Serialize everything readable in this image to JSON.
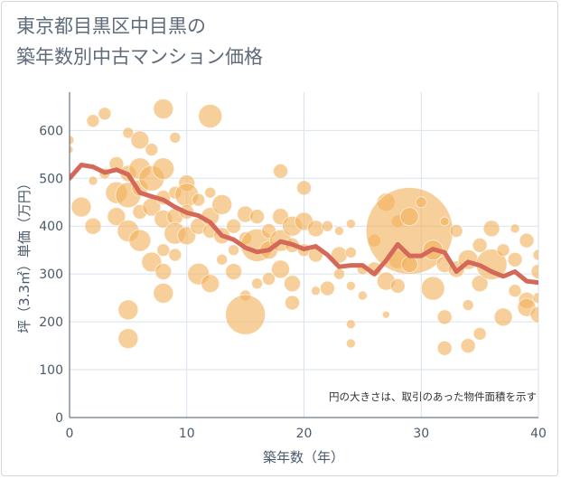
{
  "title_lines": [
    "東京都目黒区中目黒の",
    "築年数別中古マンション価格"
  ],
  "note": "円の大きさは、取引のあった物件面積を示す",
  "chart_data": {
    "type": "scatter",
    "xlabel": "築年数（年）",
    "ylabel": "坪（3.3㎡）単価（万円）",
    "xlim": [
      0,
      40
    ],
    "ylim": [
      0,
      680
    ],
    "xticks": [
      "0",
      "10",
      "20",
      "30",
      "40"
    ],
    "yticks": [
      "0",
      "100",
      "200",
      "300",
      "400",
      "500",
      "600"
    ],
    "grid": true,
    "colors": {
      "bubble": "#f2b25c",
      "line": "#d4695a",
      "grid": "#d9e2ee",
      "axis": "#4b5a6a"
    },
    "bubbles": [
      {
        "x": 0,
        "y": 580,
        "s": 5
      },
      {
        "x": 0,
        "y": 560,
        "s": 4
      },
      {
        "x": 0,
        "y": 505,
        "s": 4
      },
      {
        "x": 1,
        "y": 440,
        "s": 11
      },
      {
        "x": 2,
        "y": 620,
        "s": 7
      },
      {
        "x": 2,
        "y": 495,
        "s": 5
      },
      {
        "x": 2,
        "y": 400,
        "s": 9
      },
      {
        "x": 3,
        "y": 635,
        "s": 7
      },
      {
        "x": 3,
        "y": 510,
        "s": 6
      },
      {
        "x": 4,
        "y": 530,
        "s": 8
      },
      {
        "x": 4,
        "y": 470,
        "s": 12
      },
      {
        "x": 4,
        "y": 420,
        "s": 10
      },
      {
        "x": 5,
        "y": 595,
        "s": 6
      },
      {
        "x": 5,
        "y": 510,
        "s": 9
      },
      {
        "x": 5,
        "y": 465,
        "s": 14
      },
      {
        "x": 5,
        "y": 390,
        "s": 12
      },
      {
        "x": 5,
        "y": 225,
        "s": 11
      },
      {
        "x": 5,
        "y": 165,
        "s": 11
      },
      {
        "x": 6,
        "y": 580,
        "s": 10
      },
      {
        "x": 6,
        "y": 520,
        "s": 12
      },
      {
        "x": 6,
        "y": 480,
        "s": 9
      },
      {
        "x": 6,
        "y": 430,
        "s": 8
      },
      {
        "x": 6,
        "y": 370,
        "s": 12
      },
      {
        "x": 7,
        "y": 560,
        "s": 7
      },
      {
        "x": 7,
        "y": 500,
        "s": 14
      },
      {
        "x": 7,
        "y": 440,
        "s": 10
      },
      {
        "x": 7,
        "y": 325,
        "s": 11
      },
      {
        "x": 8,
        "y": 645,
        "s": 11
      },
      {
        "x": 8,
        "y": 520,
        "s": 12
      },
      {
        "x": 8,
        "y": 460,
        "s": 8
      },
      {
        "x": 8,
        "y": 415,
        "s": 10
      },
      {
        "x": 8,
        "y": 350,
        "s": 7
      },
      {
        "x": 8,
        "y": 305,
        "s": 9
      },
      {
        "x": 8,
        "y": 260,
        "s": 11
      },
      {
        "x": 9,
        "y": 585,
        "s": 6
      },
      {
        "x": 9,
        "y": 470,
        "s": 7
      },
      {
        "x": 9,
        "y": 420,
        "s": 9
      },
      {
        "x": 9,
        "y": 385,
        "s": 12
      },
      {
        "x": 9,
        "y": 340,
        "s": 7
      },
      {
        "x": 10,
        "y": 490,
        "s": 9
      },
      {
        "x": 10,
        "y": 465,
        "s": 13
      },
      {
        "x": 10,
        "y": 430,
        "s": 8
      },
      {
        "x": 10,
        "y": 380,
        "s": 10
      },
      {
        "x": 11,
        "y": 455,
        "s": 7
      },
      {
        "x": 11,
        "y": 400,
        "s": 9
      },
      {
        "x": 11,
        "y": 300,
        "s": 12
      },
      {
        "x": 12,
        "y": 630,
        "s": 13
      },
      {
        "x": 12,
        "y": 470,
        "s": 6
      },
      {
        "x": 12,
        "y": 420,
        "s": 10
      },
      {
        "x": 12,
        "y": 390,
        "s": 8
      },
      {
        "x": 12,
        "y": 280,
        "s": 10
      },
      {
        "x": 13,
        "y": 445,
        "s": 11
      },
      {
        "x": 13,
        "y": 380,
        "s": 9
      },
      {
        "x": 13,
        "y": 330,
        "s": 6
      },
      {
        "x": 14,
        "y": 400,
        "s": 8
      },
      {
        "x": 14,
        "y": 350,
        "s": 6
      },
      {
        "x": 14,
        "y": 305,
        "s": 9
      },
      {
        "x": 15,
        "y": 425,
        "s": 9
      },
      {
        "x": 15,
        "y": 375,
        "s": 7
      },
      {
        "x": 15,
        "y": 255,
        "s": 6
      },
      {
        "x": 15,
        "y": 215,
        "s": 22
      },
      {
        "x": 16,
        "y": 420,
        "s": 8
      },
      {
        "x": 16,
        "y": 360,
        "s": 18
      },
      {
        "x": 16,
        "y": 280,
        "s": 6
      },
      {
        "x": 17,
        "y": 390,
        "s": 8
      },
      {
        "x": 17,
        "y": 350,
        "s": 10
      },
      {
        "x": 17,
        "y": 290,
        "s": 7
      },
      {
        "x": 18,
        "y": 515,
        "s": 8
      },
      {
        "x": 18,
        "y": 420,
        "s": 9
      },
      {
        "x": 18,
        "y": 370,
        "s": 12
      },
      {
        "x": 18,
        "y": 310,
        "s": 10
      },
      {
        "x": 19,
        "y": 400,
        "s": 11
      },
      {
        "x": 19,
        "y": 360,
        "s": 8
      },
      {
        "x": 19,
        "y": 280,
        "s": 9
      },
      {
        "x": 19,
        "y": 240,
        "s": 8
      },
      {
        "x": 20,
        "y": 480,
        "s": 8
      },
      {
        "x": 20,
        "y": 410,
        "s": 10
      },
      {
        "x": 20,
        "y": 350,
        "s": 7
      },
      {
        "x": 21,
        "y": 395,
        "s": 9
      },
      {
        "x": 21,
        "y": 340,
        "s": 8
      },
      {
        "x": 21,
        "y": 265,
        "s": 5
      },
      {
        "x": 22,
        "y": 400,
        "s": 6
      },
      {
        "x": 22,
        "y": 270,
        "s": 8
      },
      {
        "x": 23,
        "y": 390,
        "s": 5
      },
      {
        "x": 23,
        "y": 340,
        "s": 9
      },
      {
        "x": 23,
        "y": 300,
        "s": 6
      },
      {
        "x": 24,
        "y": 405,
        "s": 5
      },
      {
        "x": 24,
        "y": 345,
        "s": 6
      },
      {
        "x": 24,
        "y": 275,
        "s": 5
      },
      {
        "x": 24,
        "y": 195,
        "s": 5
      },
      {
        "x": 24,
        "y": 155,
        "s": 5
      },
      {
        "x": 25,
        "y": 310,
        "s": 6
      },
      {
        "x": 25,
        "y": 255,
        "s": 5
      },
      {
        "x": 26,
        "y": 370,
        "s": 7
      },
      {
        "x": 26,
        "y": 310,
        "s": 8
      },
      {
        "x": 27,
        "y": 450,
        "s": 10
      },
      {
        "x": 27,
        "y": 285,
        "s": 10
      },
      {
        "x": 27,
        "y": 215,
        "s": 4
      },
      {
        "x": 28,
        "y": 410,
        "s": 7
      },
      {
        "x": 28,
        "y": 330,
        "s": 10
      },
      {
        "x": 28,
        "y": 275,
        "s": 8
      },
      {
        "x": 29,
        "y": 390,
        "s": 48
      },
      {
        "x": 29,
        "y": 420,
        "s": 10
      },
      {
        "x": 29,
        "y": 320,
        "s": 9
      },
      {
        "x": 30,
        "y": 450,
        "s": 6
      },
      {
        "x": 31,
        "y": 350,
        "s": 11
      },
      {
        "x": 31,
        "y": 270,
        "s": 13
      },
      {
        "x": 32,
        "y": 410,
        "s": 5
      },
      {
        "x": 32,
        "y": 320,
        "s": 9
      },
      {
        "x": 32,
        "y": 210,
        "s": 8
      },
      {
        "x": 32,
        "y": 145,
        "s": 8
      },
      {
        "x": 33,
        "y": 390,
        "s": 7
      },
      {
        "x": 33,
        "y": 310,
        "s": 9
      },
      {
        "x": 34,
        "y": 330,
        "s": 11
      },
      {
        "x": 34,
        "y": 235,
        "s": 6
      },
      {
        "x": 34,
        "y": 150,
        "s": 8
      },
      {
        "x": 35,
        "y": 360,
        "s": 8
      },
      {
        "x": 35,
        "y": 280,
        "s": 9
      },
      {
        "x": 35,
        "y": 175,
        "s": 7
      },
      {
        "x": 36,
        "y": 395,
        "s": 9
      },
      {
        "x": 36,
        "y": 320,
        "s": 17
      },
      {
        "x": 37,
        "y": 350,
        "s": 7
      },
      {
        "x": 37,
        "y": 210,
        "s": 10
      },
      {
        "x": 38,
        "y": 395,
        "s": 5
      },
      {
        "x": 38,
        "y": 330,
        "s": 8
      },
      {
        "x": 38,
        "y": 265,
        "s": 7
      },
      {
        "x": 39,
        "y": 370,
        "s": 8
      },
      {
        "x": 39,
        "y": 245,
        "s": 9
      },
      {
        "x": 39,
        "y": 230,
        "s": 10
      },
      {
        "x": 40,
        "y": 340,
        "s": 6
      },
      {
        "x": 40,
        "y": 305,
        "s": 8
      },
      {
        "x": 40,
        "y": 250,
        "s": 6
      },
      {
        "x": 40,
        "y": 215,
        "s": 9
      }
    ],
    "trend": {
      "x": [
        0,
        1,
        2,
        3,
        4,
        5,
        6,
        7,
        8,
        9,
        10,
        11,
        12,
        13,
        14,
        15,
        16,
        17,
        18,
        19,
        20,
        21,
        22,
        23,
        24,
        25,
        26,
        27,
        28,
        29,
        30,
        31,
        32,
        33,
        34,
        35,
        36,
        37,
        38,
        39,
        40
      ],
      "y": [
        500,
        528,
        524,
        512,
        518,
        508,
        470,
        462,
        455,
        440,
        428,
        422,
        408,
        380,
        372,
        355,
        346,
        350,
        368,
        362,
        352,
        358,
        340,
        315,
        318,
        318,
        300,
        328,
        362,
        338,
        338,
        352,
        345,
        305,
        325,
        318,
        305,
        295,
        305,
        285,
        282
      ]
    }
  }
}
